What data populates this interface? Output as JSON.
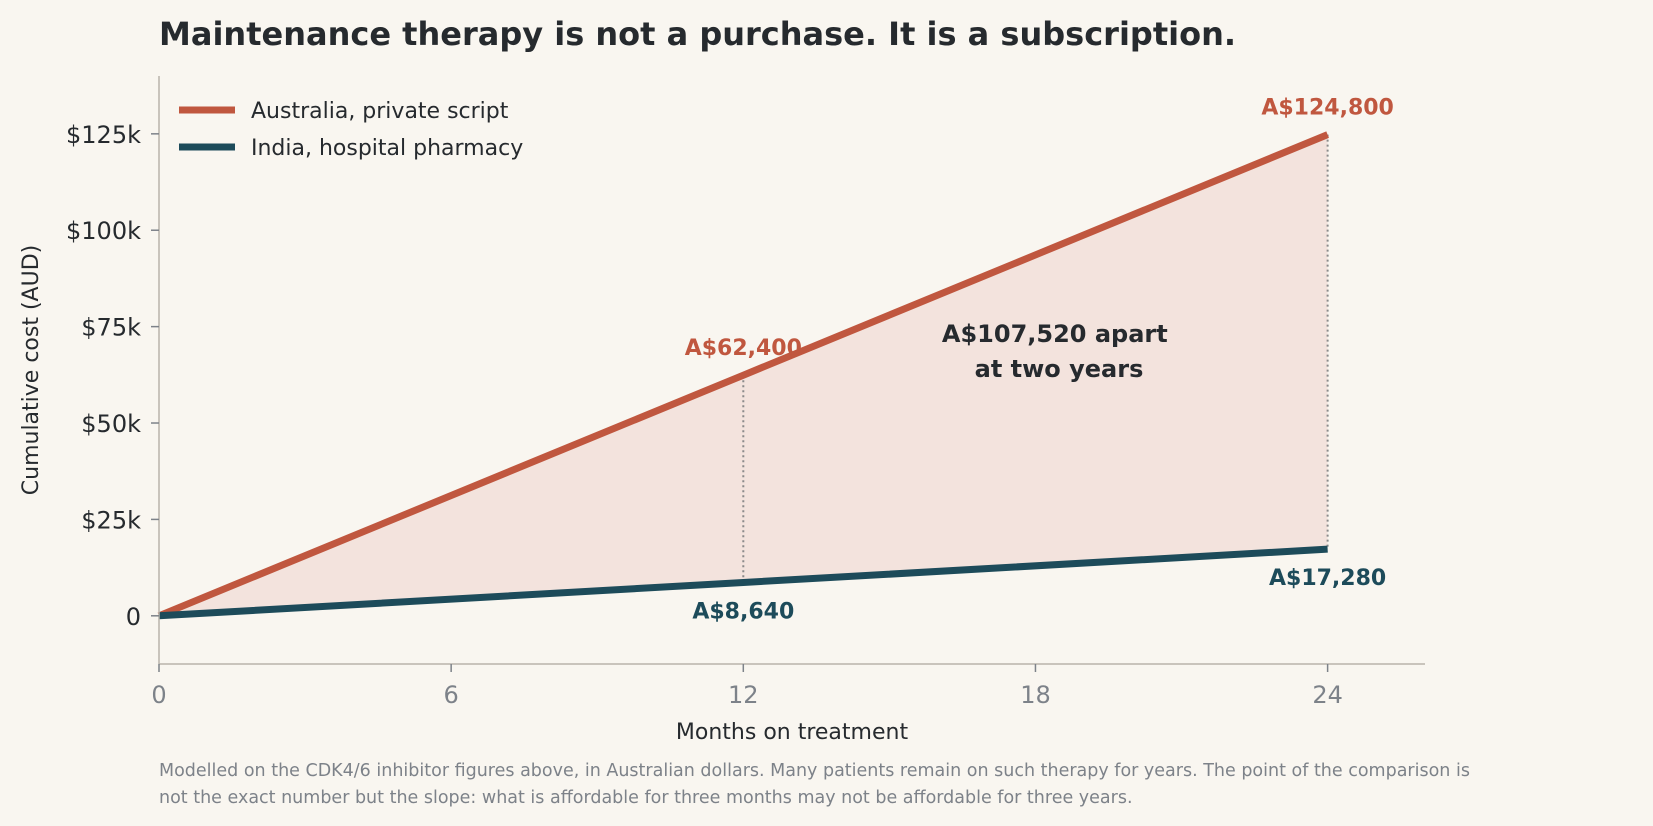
{
  "chart_data": {
    "type": "line",
    "title": "Maintenance therapy is not a purchase. It is a subscription.",
    "xlabel": "Months on treatment",
    "ylabel": "Cumulative cost (AUD)",
    "xlim": [
      0,
      26
    ],
    "ylim": [
      -12500,
      140000
    ],
    "x_ticks": [
      0,
      6,
      12,
      18,
      24
    ],
    "x_tick_labels": [
      "0",
      "6",
      "12",
      "18",
      "24"
    ],
    "y_ticks": [
      0,
      25000,
      50000,
      75000,
      100000,
      125000
    ],
    "y_tick_labels": [
      "0",
      "$25k",
      "$50k",
      "$75k",
      "$100k",
      "$125k"
    ],
    "legend_position": "top-left",
    "grid": false,
    "series": [
      {
        "name": "Australia, private script",
        "color": "#c0573f",
        "x": [
          0,
          12,
          24
        ],
        "values": [
          0,
          62400,
          124800
        ]
      },
      {
        "name": "India, hospital pharmacy",
        "color": "#1d4b5a",
        "x": [
          0,
          12,
          24
        ],
        "values": [
          0,
          8640,
          17280
        ]
      }
    ],
    "fill_between_color": "#f3e3dd",
    "point_labels": [
      {
        "text": "A$62,400",
        "x": 12,
        "y": 62400,
        "series": 0
      },
      {
        "text": "A$124,800",
        "x": 24,
        "y": 124800,
        "series": 0
      },
      {
        "text": "A$8,640",
        "x": 12,
        "y": 8640,
        "series": 1
      },
      {
        "text": "A$17,280",
        "x": 24,
        "y": 17280,
        "series": 1
      }
    ],
    "annotation": {
      "lines": [
        "A$107,520 apart",
        "at two years"
      ],
      "x": 18.5,
      "y": 68000
    },
    "footnote": [
      "Modelled on the CDK4/6 inhibitor figures above, in Australian dollars. Many patients remain on such therapy for years. The point of the comparison is",
      "not the exact number but the slope: what is affordable for three months may not be affordable for three years."
    ]
  }
}
